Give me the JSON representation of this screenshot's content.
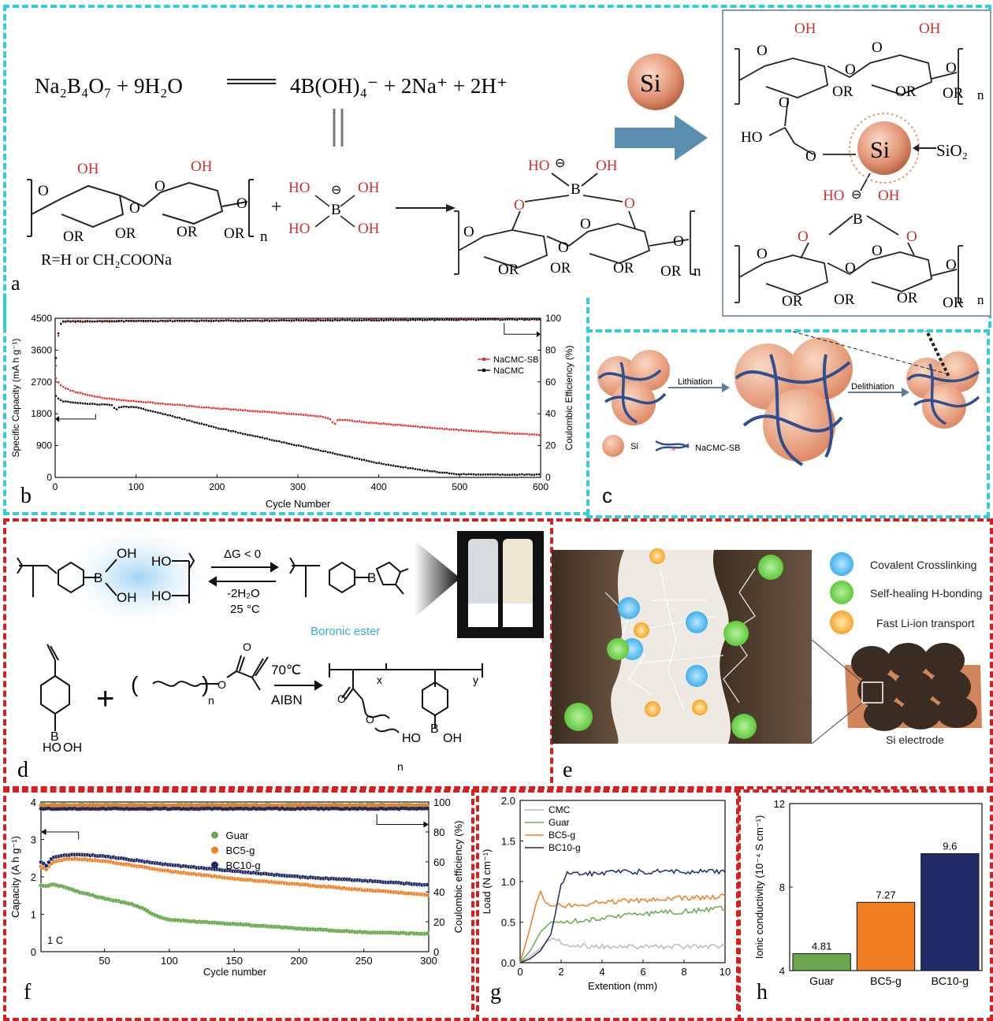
{
  "colors": {
    "cyan": "#33ccdd",
    "red": "#d42020",
    "nacmc_sb": "#e23232",
    "nacmc": "#111111",
    "guar": "#6aa84f",
    "bc5": "#f07f22",
    "bc10": "#1f2a66",
    "cmc": "#bbbbbb"
  },
  "panel_labels": {
    "a": "a",
    "b": "b",
    "c": "c",
    "d": "d",
    "e": "e",
    "f": "f",
    "g": "g",
    "h": "h"
  },
  "panel_a": {
    "equation_lhs": "Na₂B₄O₇  +  9H₂O",
    "equation_rhs": "4B(OH)₄⁻  +  2Na⁺ + 2H⁺",
    "r_def": "R=H or CH₂COONa",
    "si": "Si",
    "sio2": "SiO₂",
    "oh": "OH",
    "or": "OR",
    "ho": "HO",
    "o": "O",
    "b": "B",
    "n": "n",
    "minus": "⊖"
  },
  "panel_c": {
    "lithiation": "Lithiation",
    "delithiation": "Delithiation",
    "legend_si": "Si",
    "legend_binder": "NaCMC-SB"
  },
  "panel_d": {
    "dg": "ΔG < 0",
    "minus_water": "-2H₂O",
    "temp": "25 °C",
    "boronic_ester": "Boronic ester",
    "temp2": "70℃",
    "initiator": "AIBN",
    "oh": "OH",
    "ho": "HO",
    "b": "B",
    "o": "O",
    "x": "x",
    "y": "y",
    "n": "n",
    "plus": "+"
  },
  "panel_e": {
    "legend": [
      "Covalent Crosslinking",
      "Self-healing H-bonding",
      "Fast Li-ion transport"
    ],
    "electrode": "Si electrode"
  },
  "chart_data": [
    {
      "id": "b",
      "type": "line",
      "xlabel": "Cycle Number",
      "ylabel": "Specific Capacity (mA h g⁻¹)",
      "y2label": "Coulombic Efficiency (%)",
      "xlim": [
        0,
        600
      ],
      "ylim": [
        0,
        4500
      ],
      "y2lim": [
        0,
        100
      ],
      "xticks": [
        0,
        100,
        200,
        300,
        400,
        500,
        600
      ],
      "yticks": [
        0,
        900,
        1800,
        2700,
        3600,
        4500
      ],
      "y2ticks": [
        0,
        20,
        40,
        60,
        80,
        100
      ],
      "series": [
        {
          "name": "NaCMC-SB",
          "x": [
            1,
            5,
            10,
            20,
            40,
            60,
            80,
            100,
            150,
            200,
            250,
            300,
            330,
            340,
            345,
            350,
            380,
            400,
            450,
            500,
            550,
            600
          ],
          "y": [
            2800,
            2650,
            2550,
            2450,
            2330,
            2250,
            2190,
            2150,
            2050,
            1950,
            1870,
            1780,
            1720,
            1650,
            1480,
            1640,
            1570,
            1530,
            1430,
            1340,
            1260,
            1200
          ]
        },
        {
          "name": "NaCMC",
          "x": [
            1,
            5,
            10,
            30,
            50,
            70,
            75,
            80,
            100,
            150,
            200,
            250,
            300,
            350,
            400,
            450,
            480,
            500,
            550,
            600
          ],
          "y": [
            2300,
            2220,
            2150,
            2100,
            2070,
            2050,
            1900,
            2000,
            1980,
            1700,
            1400,
            1150,
            900,
            650,
            400,
            220,
            130,
            90,
            80,
            80
          ]
        },
        {
          "name": "NaCMC-SB CE",
          "x": [
            1,
            5,
            10,
            600
          ],
          "y2": [
            70,
            95,
            98,
            99.5
          ]
        },
        {
          "name": "NaCMC CE",
          "x": [
            1,
            5,
            10,
            600
          ],
          "y2": [
            75,
            96,
            98,
            99.3
          ]
        }
      ],
      "legend": [
        "NaCMC-SB",
        "NaCMC"
      ]
    },
    {
      "id": "f",
      "type": "line",
      "xlabel": "Cycle number",
      "ylabel": "Capacity (A h g⁻¹)",
      "y2label": "Coulombic efficiency (%)",
      "xlim": [
        1,
        300
      ],
      "ylim": [
        0,
        4
      ],
      "y2lim": [
        0,
        100
      ],
      "xticks": [
        50,
        100,
        150,
        200,
        250,
        300
      ],
      "yticks": [
        0,
        1,
        2,
        3,
        4
      ],
      "y2ticks": [
        0,
        20,
        40,
        60,
        80,
        100
      ],
      "annotation": "1 C",
      "series": [
        {
          "name": "Guar",
          "x": [
            1,
            5,
            10,
            20,
            30,
            50,
            70,
            80,
            90,
            100,
            150,
            200,
            250,
            300
          ],
          "y": [
            1.78,
            1.75,
            1.8,
            1.72,
            1.6,
            1.42,
            1.28,
            1.15,
            0.95,
            0.85,
            0.74,
            0.62,
            0.52,
            0.48
          ]
        },
        {
          "name": "BC5-g",
          "x": [
            1,
            5,
            10,
            20,
            30,
            50,
            100,
            150,
            200,
            250,
            300
          ],
          "y": [
            2.28,
            2.2,
            2.4,
            2.47,
            2.48,
            2.42,
            2.15,
            1.95,
            1.8,
            1.65,
            1.52
          ]
        },
        {
          "name": "BC10-g",
          "x": [
            1,
            5,
            10,
            20,
            30,
            50,
            100,
            150,
            200,
            250,
            300
          ],
          "y": [
            2.4,
            2.3,
            2.52,
            2.58,
            2.6,
            2.55,
            2.32,
            2.15,
            2.0,
            1.9,
            1.78
          ]
        }
      ],
      "ce_series": [
        {
          "name": "Guar",
          "y2": 98
        },
        {
          "name": "BC5-g",
          "y2": 97.5
        },
        {
          "name": "BC10-g",
          "y2": 95.5
        }
      ],
      "legend": [
        "Guar",
        "BC5-g",
        "BC10-g"
      ]
    },
    {
      "id": "g",
      "type": "line",
      "xlabel": "Extention (mm)",
      "ylabel": "Load (N cm⁻¹)",
      "xlim": [
        0,
        10
      ],
      "ylim": [
        0,
        2
      ],
      "xticks": [
        0,
        2,
        4,
        6,
        8,
        10
      ],
      "yticks": [
        0,
        0.5,
        1.0,
        1.5,
        2.0
      ],
      "ytick_labels": [
        "0.0",
        "0.5",
        "1.0",
        "1.5",
        "2.0"
      ],
      "series": [
        {
          "name": "CMC",
          "x": [
            0,
            0.5,
            1.0,
            1.3,
            1.6,
            2.0,
            2.5,
            3,
            4,
            5,
            6,
            7,
            8,
            9,
            10
          ],
          "y": [
            0,
            0.08,
            0.18,
            0.26,
            0.3,
            0.25,
            0.22,
            0.21,
            0.2,
            0.2,
            0.2,
            0.2,
            0.2,
            0.2,
            0.2
          ]
        },
        {
          "name": "Guar",
          "x": [
            0,
            0.5,
            1.0,
            1.5,
            2,
            3,
            4,
            5,
            6,
            7,
            8,
            9,
            10
          ],
          "y": [
            0,
            0.15,
            0.38,
            0.5,
            0.5,
            0.52,
            0.55,
            0.58,
            0.6,
            0.62,
            0.63,
            0.65,
            0.67
          ]
        },
        {
          "name": "BC5-g",
          "x": [
            0,
            0.4,
            0.8,
            1.0,
            1.2,
            1.5,
            2,
            3,
            4,
            5,
            6,
            7,
            8,
            9,
            10
          ],
          "y": [
            0,
            0.35,
            0.75,
            0.88,
            0.75,
            0.7,
            0.7,
            0.72,
            0.75,
            0.76,
            0.77,
            0.78,
            0.8,
            0.8,
            0.82
          ]
        },
        {
          "name": "BC10-g",
          "x": [
            0,
            0.5,
            1.0,
            1.5,
            1.8,
            2.0,
            2.3,
            3,
            4,
            5,
            6,
            7,
            8,
            9,
            10
          ],
          "y": [
            0,
            0.05,
            0.15,
            0.35,
            0.7,
            0.95,
            1.1,
            1.1,
            1.1,
            1.12,
            1.12,
            1.13,
            1.12,
            1.12,
            1.12
          ]
        }
      ],
      "legend": [
        "CMC",
        "Guar",
        "BC5-g",
        "BC10-g"
      ]
    },
    {
      "id": "h",
      "type": "bar",
      "ylabel": "Ionic conductivity (10⁻⁴ S cm⁻¹)",
      "categories": [
        "Guar",
        "BC5-g",
        "BC10-g"
      ],
      "values": [
        4.81,
        7.27,
        9.6
      ],
      "data_labels": [
        "4.81",
        "7.27",
        "9.6"
      ],
      "ylim": [
        4,
        12
      ],
      "yticks": [
        4,
        8,
        12
      ]
    }
  ]
}
